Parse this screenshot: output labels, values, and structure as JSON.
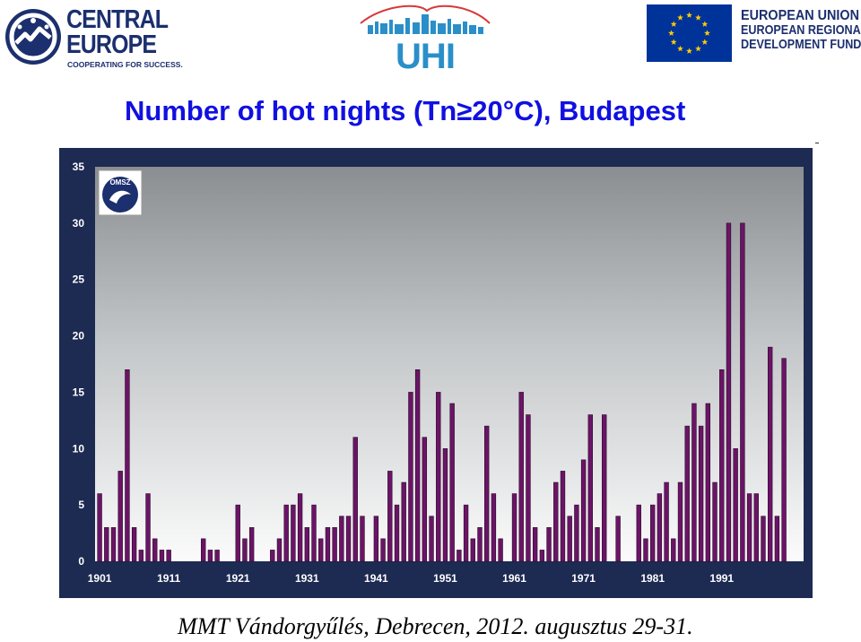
{
  "header": {
    "central_europe": {
      "line1": "CENTRAL",
      "line2": "EUROPE",
      "tagline": "COOPERATING FOR SUCCESS."
    },
    "uhi": {
      "text": "UHI"
    },
    "eu": {
      "line1": "EUROPEAN UNION",
      "line2": "EUROPEAN REGIONAL",
      "line3": "DEVELOPMENT FUND"
    }
  },
  "title": "Number of hot nights (Tn≥20°C), Budapest",
  "badge": {
    "text": "OMSZ"
  },
  "footer": "MMT Vándorgyűlés, Debrecen, 2012. augusztus 29-31.",
  "colors": {
    "bar": "#6b1467",
    "bar_edge": "#2a0a29",
    "frame": "#1d2a52",
    "title": "#1010e0",
    "brand_blue": "#1c2f6e",
    "uhi_blue": "#2a8fc8",
    "uhi_red": "#d73838",
    "eu_blue": "#003399",
    "eu_gold": "#ffcc00"
  },
  "chart_data": {
    "type": "bar",
    "title": "Number of hot nights (Tn≥20°C), Budapest",
    "xlabel": "",
    "ylabel": "",
    "x_start": 1901,
    "x_end": 2011,
    "xticks": [
      1901,
      1911,
      1921,
      1931,
      1941,
      1951,
      1961,
      1971,
      1981,
      1991
    ],
    "yticks": [
      0,
      5,
      10,
      15,
      20,
      25,
      30,
      35
    ],
    "ylim": [
      0,
      35
    ],
    "grid": false,
    "legend": "none",
    "years": [
      1901,
      1902,
      1903,
      1904,
      1905,
      1906,
      1907,
      1908,
      1909,
      1910,
      1911,
      1912,
      1913,
      1914,
      1915,
      1916,
      1917,
      1918,
      1919,
      1920,
      1921,
      1922,
      1923,
      1924,
      1925,
      1926,
      1927,
      1928,
      1929,
      1930,
      1931,
      1932,
      1933,
      1934,
      1935,
      1936,
      1937,
      1938,
      1939,
      1940,
      1941,
      1942,
      1943,
      1944,
      1945,
      1946,
      1947,
      1948,
      1949,
      1950,
      1951,
      1952,
      1953,
      1954,
      1955,
      1956,
      1957,
      1958,
      1959,
      1960,
      1961,
      1962,
      1963,
      1964,
      1965,
      1966,
      1967,
      1968,
      1969,
      1970,
      1971,
      1972,
      1973,
      1974,
      1975,
      1976,
      1977,
      1978,
      1979,
      1980,
      1981,
      1982,
      1983,
      1984,
      1985,
      1986,
      1987,
      1988,
      1989,
      1990,
      1991,
      1992,
      1993,
      1994,
      1995,
      1996,
      1997,
      1998,
      1999,
      2000,
      2001,
      2002
    ],
    "values": [
      6,
      3,
      3,
      8,
      17,
      3,
      1,
      6,
      2,
      1,
      1,
      0,
      0,
      0,
      0,
      2,
      1,
      1,
      0,
      0,
      5,
      2,
      3,
      0,
      0,
      1,
      2,
      5,
      5,
      6,
      3,
      5,
      2,
      3,
      3,
      4,
      4,
      11,
      4,
      0,
      4,
      2,
      8,
      5,
      7,
      15,
      17,
      11,
      4,
      15,
      10,
      14,
      1,
      5,
      2,
      3,
      12,
      6,
      2,
      0,
      6,
      15,
      13,
      3,
      1,
      3,
      7,
      8,
      4,
      5,
      9,
      13,
      3,
      13,
      0,
      4,
      0,
      0,
      5,
      2,
      5,
      6,
      7,
      2,
      7,
      12,
      14,
      12,
      14,
      7,
      17,
      30,
      10,
      30,
      6,
      6,
      4,
      19,
      4,
      18,
      0,
      0
    ]
  }
}
